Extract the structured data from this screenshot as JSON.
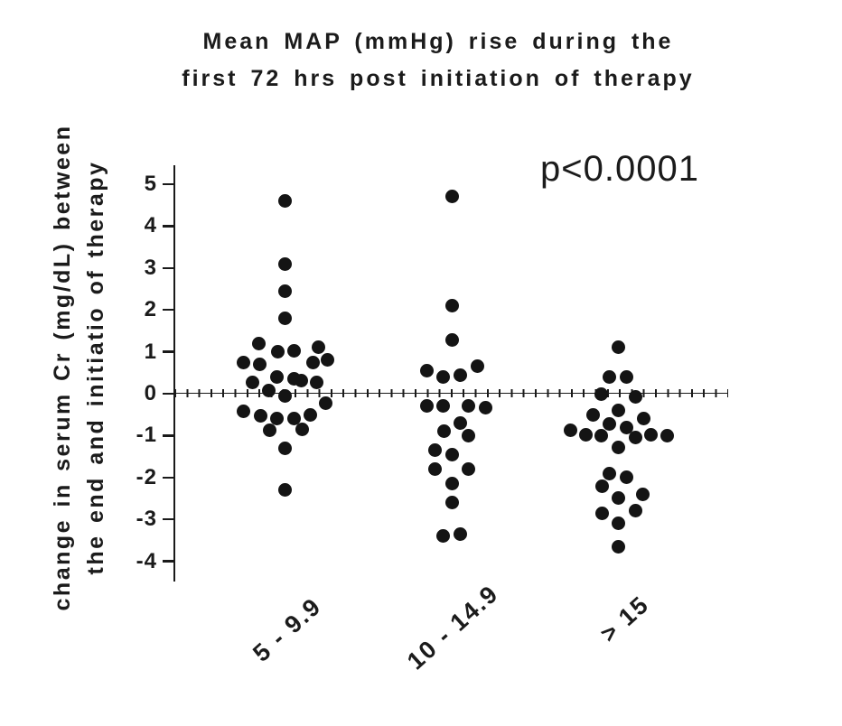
{
  "chart_data": {
    "type": "scatter",
    "subtype": "dot-plot",
    "title_lines": [
      "Mean MAP (mmHg) rise during the",
      "first 72 hrs post initiation of therapy"
    ],
    "ylabel_lines": [
      "change in serum Cr (mg/dL) between",
      "the end and initiatio of therapy"
    ],
    "annotation": "p<0.0001",
    "xlabel": "",
    "y_axis": {
      "ticks": [
        5,
        4,
        3,
        2,
        1,
        0,
        -1,
        -2,
        -3,
        -4
      ],
      "ylim": [
        -4.6,
        5.6
      ]
    },
    "zero_reference_line": true,
    "grid": false,
    "legend": "none",
    "colors": {
      "dot": "#141414",
      "text": "#1b1b1b",
      "axis": "#1a1a1a",
      "background": "#ffffff"
    },
    "groups": [
      {
        "label": "5 - 9.9",
        "n": 29,
        "points": [
          {
            "v": 4.6,
            "dx": 0
          },
          {
            "v": 3.1,
            "dx": 0
          },
          {
            "v": 2.45,
            "dx": 0
          },
          {
            "v": 1.8,
            "dx": 0
          },
          {
            "v": 1.2,
            "dx": -29
          },
          {
            "v": 1.0,
            "dx": -8
          },
          {
            "v": 1.03,
            "dx": 10
          },
          {
            "v": 1.1,
            "dx": 37
          },
          {
            "v": 0.75,
            "dx": -46
          },
          {
            "v": 0.7,
            "dx": -28
          },
          {
            "v": 0.74,
            "dx": 31
          },
          {
            "v": 0.8,
            "dx": 47
          },
          {
            "v": 0.28,
            "dx": -36
          },
          {
            "v": 0.39,
            "dx": -9
          },
          {
            "v": 0.36,
            "dx": 10
          },
          {
            "v": 0.31,
            "dx": 18
          },
          {
            "v": 0.27,
            "dx": 35
          },
          {
            "v": 0.08,
            "dx": -18
          },
          {
            "v": -0.05,
            "dx": 0
          },
          {
            "v": -0.22,
            "dx": 45
          },
          {
            "v": -0.41,
            "dx": -46
          },
          {
            "v": -0.52,
            "dx": -27
          },
          {
            "v": -0.6,
            "dx": -9
          },
          {
            "v": -0.6,
            "dx": 10
          },
          {
            "v": -0.5,
            "dx": 28
          },
          {
            "v": -0.88,
            "dx": -17
          },
          {
            "v": -0.85,
            "dx": 19
          },
          {
            "v": -1.3,
            "dx": 0
          },
          {
            "v": -2.3,
            "dx": 0
          }
        ]
      },
      {
        "label": "10 - 14.9",
        "n": 22,
        "points": [
          {
            "v": 4.7,
            "dx": 0
          },
          {
            "v": 2.1,
            "dx": 0
          },
          {
            "v": 1.28,
            "dx": 0
          },
          {
            "v": 0.55,
            "dx": -28
          },
          {
            "v": 0.4,
            "dx": -10
          },
          {
            "v": 0.45,
            "dx": 9
          },
          {
            "v": 0.65,
            "dx": 28
          },
          {
            "v": -0.3,
            "dx": -28
          },
          {
            "v": -0.3,
            "dx": -10
          },
          {
            "v": -0.3,
            "dx": 18
          },
          {
            "v": -0.33,
            "dx": 37
          },
          {
            "v": -0.7,
            "dx": 9
          },
          {
            "v": -0.9,
            "dx": -9
          },
          {
            "v": -1.0,
            "dx": 18
          },
          {
            "v": -1.35,
            "dx": -19
          },
          {
            "v": -1.45,
            "dx": 0
          },
          {
            "v": -1.8,
            "dx": -19
          },
          {
            "v": -1.8,
            "dx": 18
          },
          {
            "v": -2.15,
            "dx": 0
          },
          {
            "v": -2.6,
            "dx": 0
          },
          {
            "v": -3.4,
            "dx": -10
          },
          {
            "v": -3.35,
            "dx": 9
          }
        ]
      },
      {
        "label": "> 15",
        "n": 26,
        "points": [
          {
            "v": 1.1,
            "dx": 0
          },
          {
            "v": 0.4,
            "dx": -10
          },
          {
            "v": 0.4,
            "dx": 9
          },
          {
            "v": 0.0,
            "dx": -19
          },
          {
            "v": -0.08,
            "dx": 19
          },
          {
            "v": -0.4,
            "dx": 0
          },
          {
            "v": -0.5,
            "dx": -28
          },
          {
            "v": -0.6,
            "dx": 28
          },
          {
            "v": -0.72,
            "dx": -10
          },
          {
            "v": -0.8,
            "dx": 9
          },
          {
            "v": -0.87,
            "dx": -53
          },
          {
            "v": -0.97,
            "dx": -36
          },
          {
            "v": -1.0,
            "dx": -19
          },
          {
            "v": -1.05,
            "dx": 19
          },
          {
            "v": -0.98,
            "dx": 36
          },
          {
            "v": -1.0,
            "dx": 54
          },
          {
            "v": -1.28,
            "dx": 0
          },
          {
            "v": -1.9,
            "dx": -10
          },
          {
            "v": -2.0,
            "dx": 9
          },
          {
            "v": -2.2,
            "dx": -18
          },
          {
            "v": -2.48,
            "dx": 0
          },
          {
            "v": -2.4,
            "dx": 27
          },
          {
            "v": -2.85,
            "dx": -18
          },
          {
            "v": -2.8,
            "dx": 19
          },
          {
            "v": -3.1,
            "dx": 0
          },
          {
            "v": -3.65,
            "dx": 0
          }
        ]
      }
    ]
  }
}
